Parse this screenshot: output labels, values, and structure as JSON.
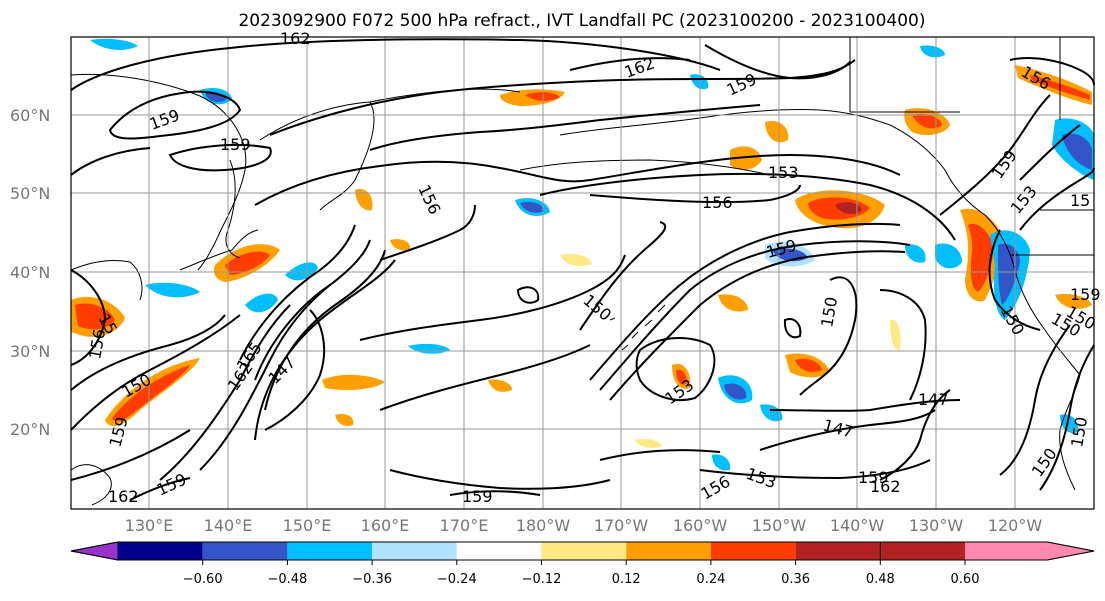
{
  "title": "2023092900 F072 500 hPa refract., IVT Landfall PC (2023100200 - 2023100400)",
  "lat_labels": [
    "60°N",
    "50°N",
    "40°N",
    "30°N",
    "20°N"
  ],
  "lon_labels": [
    "130°E",
    "140°E",
    "150°E",
    "160°E",
    "170°E",
    "180°W",
    "170°W",
    "160°W",
    "150°W",
    "140°W",
    "130°W",
    "120°W"
  ],
  "colorbar": {
    "colors": [
      "#9932cc",
      "#00008b",
      "#3455c8",
      "#00bfff",
      "#b0e2ff",
      "#ffffff",
      "#ffe985",
      "#ffa000",
      "#ff3d00",
      "#b22222",
      "#ff88b0"
    ],
    "tick_labels": [
      "−0.60",
      "−0.48",
      "−0.36",
      "−0.24",
      "−0.12",
      "0.12",
      "0.24",
      "0.36",
      "0.48",
      "0.60"
    ]
  },
  "contour_labels": [
    "162",
    "162",
    "159",
    "159",
    "159",
    "153",
    "156",
    "156",
    "159",
    "150",
    "150",
    "147",
    "165",
    "162",
    "150",
    "159",
    "153",
    "147",
    "147",
    "159",
    "162",
    "153",
    "159",
    "162",
    "159",
    "156",
    "150",
    "150",
    "153",
    "159",
    "15",
    "156",
    "156",
    "15",
    "159",
    "150",
    "150",
    "150"
  ]
}
